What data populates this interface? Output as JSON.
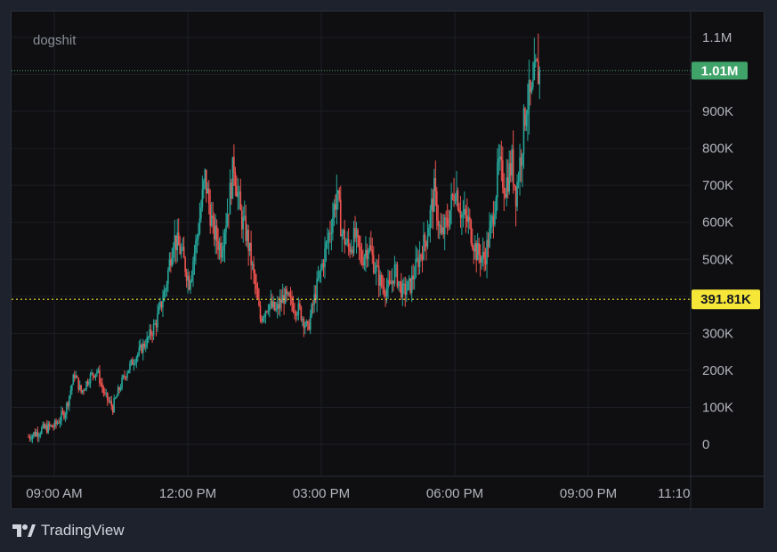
{
  "chart_data": {
    "type": "candlestick",
    "symbol": "dogshit",
    "ylim": [
      -30000,
      1150000
    ],
    "y_ticks": [
      "1.1M",
      "900K",
      "800K",
      "700K",
      "600K",
      "500K",
      "300K",
      "200K",
      "100K",
      "0"
    ],
    "x_ticks": [
      "09:00 AM",
      "12:00 PM",
      "03:00 PM",
      "06:00 PM",
      "09:00 PM",
      "11:10"
    ],
    "last_price_label": "1.01M",
    "last_price_value": 1010000,
    "marker_label": "391.81K",
    "marker_value": 391810,
    "colors": {
      "up": "#26a69a",
      "down": "#ef5350",
      "last": "#3fa36a",
      "marker": "#f5e637"
    },
    "close_path": [
      [
        0,
        20000
      ],
      [
        10,
        40000
      ],
      [
        20,
        50000
      ],
      [
        28,
        90000
      ],
      [
        35,
        190000
      ],
      [
        40,
        140000
      ],
      [
        46,
        180000
      ],
      [
        52,
        200000
      ],
      [
        58,
        130000
      ],
      [
        64,
        100000
      ],
      [
        70,
        160000
      ],
      [
        75,
        200000
      ],
      [
        82,
        240000
      ],
      [
        90,
        280000
      ],
      [
        97,
        330000
      ],
      [
        104,
        420000
      ],
      [
        110,
        560000
      ],
      [
        116,
        520000
      ],
      [
        122,
        440000
      ],
      [
        128,
        560000
      ],
      [
        134,
        720000
      ],
      [
        140,
        580000
      ],
      [
        146,
        530000
      ],
      [
        152,
        650000
      ],
      [
        156,
        760000
      ],
      [
        161,
        620000
      ],
      [
        166,
        560000
      ],
      [
        172,
        430000
      ],
      [
        176,
        340000
      ],
      [
        182,
        380000
      ],
      [
        188,
        360000
      ],
      [
        194,
        400000
      ],
      [
        200,
        380000
      ],
      [
        206,
        360000
      ],
      [
        212,
        310000
      ],
      [
        218,
        410000
      ],
      [
        224,
        500000
      ],
      [
        230,
        600000
      ],
      [
        234,
        680000
      ],
      [
        238,
        570000
      ],
      [
        243,
        530000
      ],
      [
        248,
        560000
      ],
      [
        253,
        500000
      ],
      [
        258,
        540000
      ],
      [
        263,
        480000
      ],
      [
        268,
        430000
      ],
      [
        274,
        420000
      ],
      [
        278,
        470000
      ],
      [
        284,
        410000
      ],
      [
        290,
        430000
      ],
      [
        296,
        500000
      ],
      [
        302,
        560000
      ],
      [
        308,
        680000
      ],
      [
        313,
        560000
      ],
      [
        318,
        600000
      ],
      [
        324,
        700000
      ],
      [
        329,
        620000
      ],
      [
        334,
        600000
      ],
      [
        340,
        520000
      ],
      [
        346,
        500000
      ],
      [
        352,
        600000
      ],
      [
        357,
        750000
      ],
      [
        362,
        700000
      ],
      [
        367,
        760000
      ],
      [
        370,
        680000
      ],
      [
        374,
        790000
      ],
      [
        378,
        930000
      ],
      [
        382,
        930000
      ],
      [
        385,
        1000000
      ],
      [
        388,
        1010000
      ]
    ]
  },
  "branding": {
    "name": "TradingView"
  }
}
